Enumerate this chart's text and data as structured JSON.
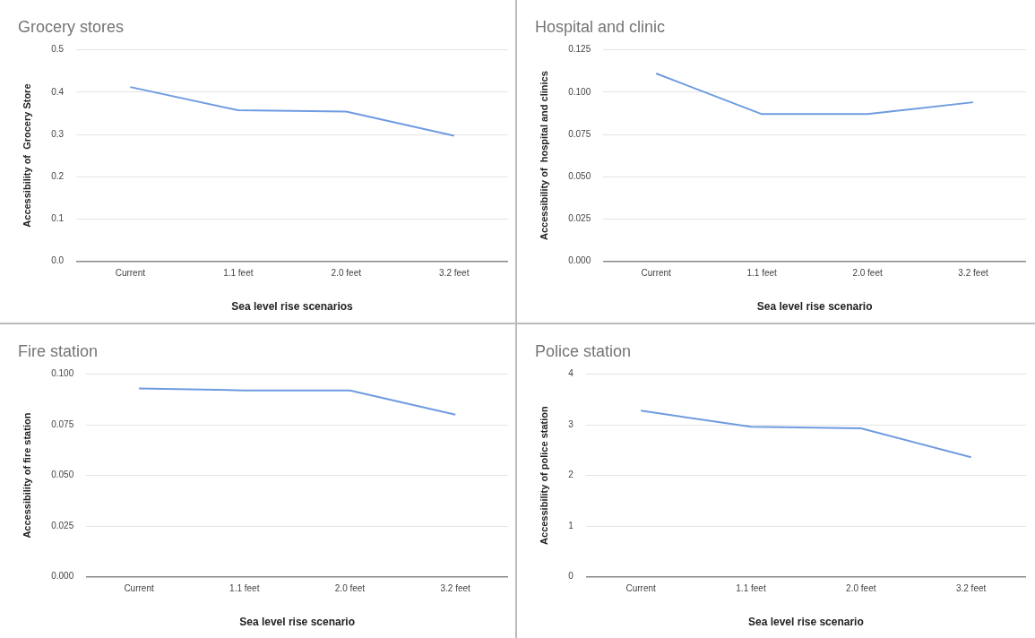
{
  "chart_data": [
    {
      "type": "line",
      "title": "Grocery stores",
      "xlabel": "Sea level rise scenarios",
      "ylabel": "Accessibility of  Grocery Store",
      "categories": [
        "Current",
        "1.1 feet",
        "2.0 feet",
        "3.2 feet"
      ],
      "series": [
        {
          "color": "#6f9be0",
          "values": [
            0.412,
            0.357,
            0.354,
            0.297
          ]
        }
      ],
      "ylim": [
        0,
        0.5
      ],
      "yticks": [
        {
          "value": 0,
          "label": "0.0"
        },
        0.1,
        0.2,
        0.3,
        0.4,
        0.5
      ],
      "grid": "y",
      "legend": false,
      "marker": "none"
    },
    {
      "type": "line",
      "title": "Hospital and clinic",
      "xlabel": "Sea level rise scenario",
      "ylabel": "Accessibility of  hospital and clinics",
      "categories": [
        "Current",
        "1.1 feet",
        "2.0 feet",
        "3.2 feet"
      ],
      "series": [
        {
          "color": "#6f9be0",
          "values": [
            0.111,
            0.087,
            0.087,
            0.094
          ]
        }
      ],
      "ylim": [
        0,
        0.125
      ],
      "yticks": [
        {
          "value": 0,
          "label": "0.000"
        },
        0.025,
        {
          "value": 0.05,
          "label": "0.050"
        },
        0.075,
        {
          "value": 0.1,
          "label": "0.100"
        },
        0.125
      ],
      "grid": "y",
      "legend": false,
      "marker": "none"
    },
    {
      "type": "line",
      "title": "Fire station",
      "xlabel": "Sea level rise scenario",
      "ylabel": "Accessibility of fire station",
      "categories": [
        "Current",
        "1.1 feet",
        "2.0 feet",
        "3.2 feet"
      ],
      "series": [
        {
          "color": "#6f9be0",
          "values": [
            0.093,
            0.092,
            0.092,
            0.08
          ]
        }
      ],
      "ylim": [
        0,
        0.1
      ],
      "yticks": [
        {
          "value": 0,
          "label": "0.000"
        },
        0.025,
        {
          "value": 0.05,
          "label": "0.050"
        },
        0.075,
        {
          "value": 0.1,
          "label": "0.100"
        }
      ],
      "grid": "y",
      "legend": false,
      "marker": "none"
    },
    {
      "type": "line",
      "title": "Police station",
      "xlabel": "Sea level rise scenario",
      "ylabel": "Accessibility of police station",
      "categories": [
        "Current",
        "1.1 feet",
        "2.0 feet",
        "3.2 feet"
      ],
      "series": [
        {
          "color": "#6f9be0",
          "values": [
            3.28,
            2.96,
            2.93,
            2.36
          ]
        }
      ],
      "ylim": [
        0,
        4
      ],
      "yticks": [
        0,
        1,
        2,
        3,
        4
      ],
      "grid": "y",
      "legend": false,
      "marker": "none"
    }
  ]
}
